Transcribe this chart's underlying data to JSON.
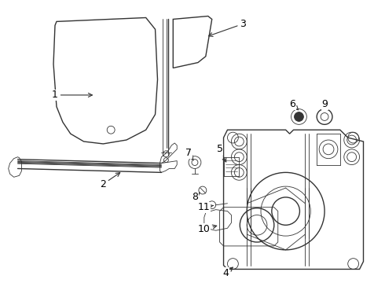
{
  "background_color": "#ffffff",
  "line_color": "#333333",
  "label_color": "#000000",
  "fig_w": 4.9,
  "fig_h": 3.6,
  "dpi": 100
}
